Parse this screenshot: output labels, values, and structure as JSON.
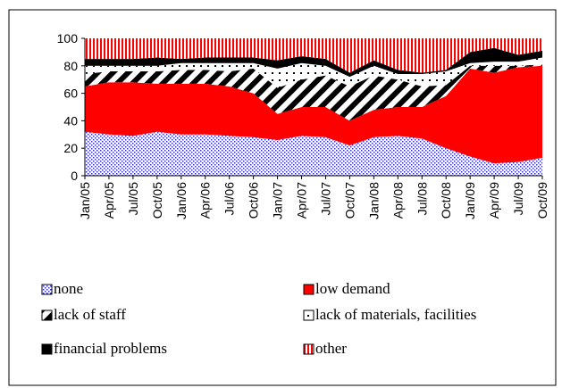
{
  "chart_data": {
    "type": "stacked_area",
    "categories": [
      "Jan/05",
      "Apr/05",
      "Jul/05",
      "Oct/05",
      "Jan/06",
      "Apr/06",
      "Jul/06",
      "Oct/06",
      "Jan/07",
      "Apr/07",
      "Jul/07",
      "Oct/07",
      "Jan/08",
      "Apr/08",
      "Jul/08",
      "Oct/08",
      "Jan/09",
      "Apr/09",
      "Jul/09",
      "Oct/09"
    ],
    "series": [
      {
        "name": "none",
        "color": "#3333cc",
        "values": [
          32,
          30,
          29,
          32,
          30,
          30,
          29,
          28,
          26,
          29,
          28,
          22,
          28,
          29,
          27,
          20,
          14,
          9,
          10,
          13
        ]
      },
      {
        "name": "low demand",
        "color": "#ff0000",
        "values": [
          33,
          38,
          39,
          35,
          37,
          37,
          36,
          32,
          19,
          21,
          22,
          18,
          20,
          21,
          23,
          38,
          64,
          66,
          69,
          67
        ]
      },
      {
        "name": "lack of staff",
        "color": "#000000",
        "values": [
          9,
          8,
          8,
          9,
          10,
          10,
          11,
          18,
          19,
          20,
          23,
          25,
          25,
          20,
          15,
          8,
          2,
          5,
          1,
          1
        ]
      },
      {
        "name": "lack of materials, facilities",
        "color": "#000000",
        "values": [
          6,
          4,
          4,
          4,
          5,
          5,
          6,
          4,
          14,
          12,
          7,
          7,
          7,
          4,
          9,
          10,
          2,
          3,
          3,
          5
        ]
      },
      {
        "name": "financial problems",
        "color": "#000000",
        "values": [
          5,
          5,
          5,
          6,
          3,
          4,
          4,
          4,
          6,
          5,
          5,
          3,
          4,
          3,
          1,
          1,
          8,
          10,
          5,
          5
        ]
      },
      {
        "name": "other",
        "color": "#ff0000",
        "values": [
          15,
          15,
          15,
          14,
          15,
          14,
          14,
          14,
          16,
          13,
          15,
          25,
          16,
          23,
          25,
          23,
          10,
          7,
          12,
          9
        ]
      }
    ],
    "ylim": [
      0,
      100
    ],
    "yticks": [
      0,
      20,
      40,
      60,
      80,
      100
    ],
    "legend": "bottom"
  }
}
